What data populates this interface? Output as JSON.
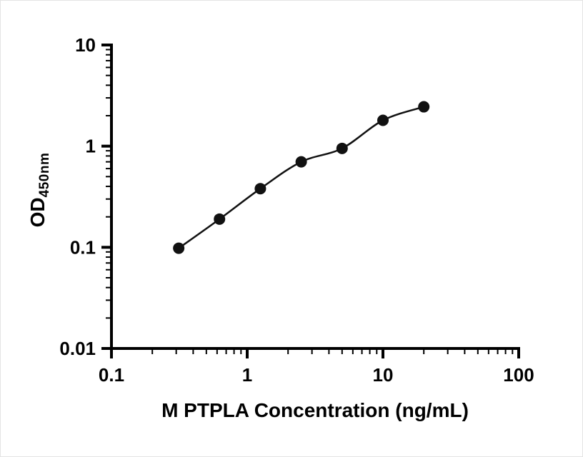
{
  "figure": {
    "background": "#ffffff",
    "axis_color": "#000000"
  },
  "chart_data": {
    "type": "scatter",
    "subtype": "standard-curve-with-fit-line",
    "x": [
      0.313,
      0.625,
      1.25,
      2.5,
      5,
      10,
      20
    ],
    "y": [
      0.098,
      0.19,
      0.38,
      0.7,
      0.95,
      1.8,
      2.45
    ],
    "title": "",
    "xlabel": "M PTPLA Concentration (ng/mL)",
    "ylabel_main": "OD",
    "ylabel_sub": "450nm",
    "x_scale": "log",
    "y_scale": "log",
    "xlim": [
      0.1,
      100
    ],
    "ylim": [
      0.01,
      10
    ],
    "x_ticks": [
      0.1,
      1,
      10,
      100
    ],
    "x_tick_labels": [
      "0.1",
      "1",
      "10",
      "100"
    ],
    "y_ticks": [
      0.01,
      0.1,
      1,
      10
    ],
    "y_tick_labels": [
      "0.01",
      "0.1",
      "1",
      "10"
    ],
    "grid": false,
    "legend": "none",
    "marker": "circle",
    "marker_color": "#111111",
    "line_color": "#111111"
  }
}
